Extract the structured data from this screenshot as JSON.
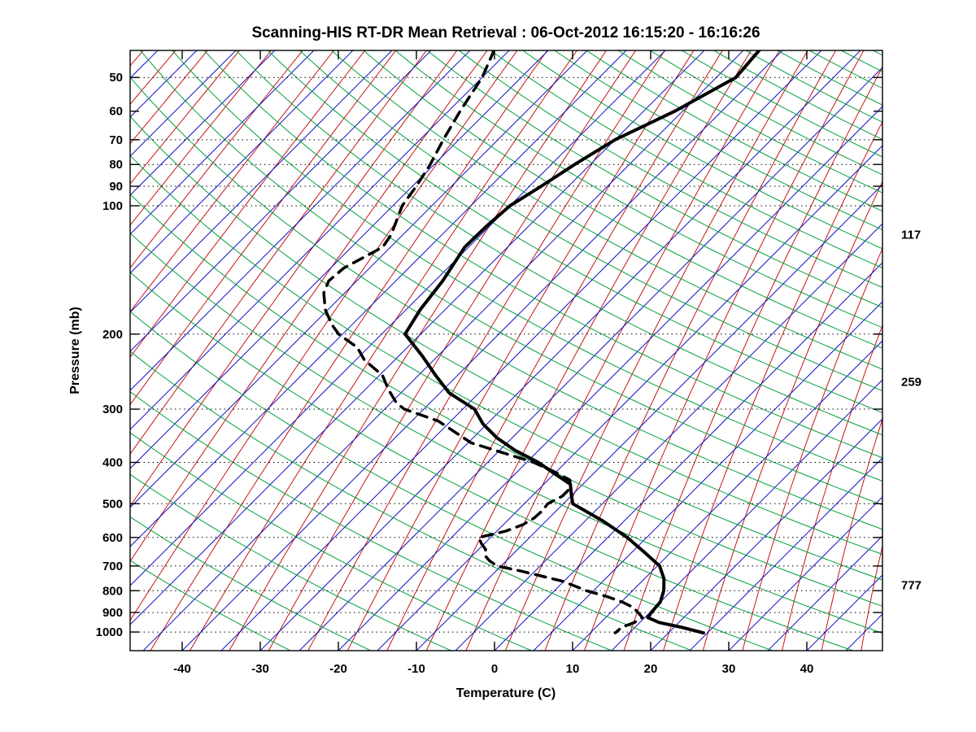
{
  "title": "Scanning-HIS RT-DR Mean Retrieval : 06-Oct-2012 16:15:20 - 16:16:26",
  "chart_data": {
    "type": "line",
    "subtype": "skew-t-log-p-sounding",
    "title": "Scanning-HIS RT-DR Mean Retrieval : 06-Oct-2012 16:15:20 - 16:16:26",
    "xlabel": "Temperature (C)",
    "ylabel": "Pressure (mb)",
    "x_axis": {
      "ticks": [
        -40,
        -30,
        -20,
        -10,
        0,
        10,
        20,
        30,
        40
      ],
      "min": -46,
      "max": 46,
      "skew_deg": 45
    },
    "y_axis": {
      "scale": "log",
      "ticks": [
        50,
        60,
        70,
        80,
        90,
        100,
        200,
        300,
        400,
        500,
        600,
        700,
        800,
        900,
        1000
      ],
      "top_mb": 43.2,
      "bottom_mb": 1105.7,
      "dotted_levels": [
        50,
        70,
        80,
        90,
        100,
        200,
        300,
        400,
        500,
        600,
        700,
        800,
        900,
        1000
      ]
    },
    "right_pressure_labels": [
      117,
      259,
      777
    ],
    "grid": "dotted-horizontal",
    "legend": "none",
    "series": [
      {
        "name": "temperature",
        "line": "solid",
        "color": "#000000",
        "points_p_mb_T_C": [
          [
            43,
            -43
          ],
          [
            50,
            -42.5
          ],
          [
            60,
            -46
          ],
          [
            70,
            -50
          ],
          [
            80,
            -52
          ],
          [
            90,
            -53.5
          ],
          [
            100,
            -55
          ],
          [
            112,
            -55.4
          ],
          [
            125,
            -55.5
          ],
          [
            150,
            -54
          ],
          [
            175,
            -53.2
          ],
          [
            200,
            -52
          ],
          [
            225,
            -47
          ],
          [
            250,
            -42.8
          ],
          [
            275,
            -38.8
          ],
          [
            300,
            -33.5
          ],
          [
            325,
            -30.5
          ],
          [
            350,
            -27
          ],
          [
            375,
            -23
          ],
          [
            400,
            -18.5
          ],
          [
            425,
            -15
          ],
          [
            450,
            -11.6
          ],
          [
            475,
            -10.2
          ],
          [
            500,
            -8.8
          ],
          [
            550,
            -2.6
          ],
          [
            600,
            2.5
          ],
          [
            650,
            6.6
          ],
          [
            700,
            10.3
          ],
          [
            750,
            12.5
          ],
          [
            800,
            14
          ],
          [
            850,
            15
          ],
          [
            900,
            15.2
          ],
          [
            925,
            15.4
          ],
          [
            950,
            17.5
          ],
          [
            975,
            21
          ],
          [
            1005,
            24.5
          ]
        ]
      },
      {
        "name": "dewpoint",
        "line": "dashed",
        "color": "#000000",
        "points_p_mb_T_C": [
          [
            43,
            -77
          ],
          [
            50,
            -75
          ],
          [
            60,
            -73.5
          ],
          [
            70,
            -72
          ],
          [
            80,
            -70.5
          ],
          [
            90,
            -69.5
          ],
          [
            100,
            -68.8
          ],
          [
            117,
            -66.5
          ],
          [
            125,
            -66
          ],
          [
            140,
            -68.3
          ],
          [
            150,
            -68.6
          ],
          [
            160,
            -67.7
          ],
          [
            175,
            -65.4
          ],
          [
            190,
            -62.6
          ],
          [
            200,
            -60.5
          ],
          [
            215,
            -56.4
          ],
          [
            230,
            -53.9
          ],
          [
            250,
            -49.6
          ],
          [
            270,
            -47
          ],
          [
            290,
            -44.3
          ],
          [
            300,
            -42.5
          ],
          [
            320,
            -36.6
          ],
          [
            340,
            -33
          ],
          [
            360,
            -29.6
          ],
          [
            380,
            -24.2
          ],
          [
            400,
            -19.1
          ],
          [
            420,
            -15.4
          ],
          [
            440,
            -12.2
          ],
          [
            460,
            -11.1
          ],
          [
            480,
            -11.1
          ],
          [
            500,
            -12
          ],
          [
            520,
            -11.8
          ],
          [
            540,
            -11.9
          ],
          [
            560,
            -12.5
          ],
          [
            580,
            -13.9
          ],
          [
            600,
            -16.5
          ],
          [
            620,
            -15.4
          ],
          [
            640,
            -14.1
          ],
          [
            660,
            -13.5
          ],
          [
            680,
            -12.2
          ],
          [
            700,
            -10.5
          ],
          [
            720,
            -6.7
          ],
          [
            740,
            -3.4
          ],
          [
            760,
            -0.2
          ],
          [
            780,
            2
          ],
          [
            800,
            4.1
          ],
          [
            825,
            7.4
          ],
          [
            850,
            10.1
          ],
          [
            875,
            12.2
          ],
          [
            900,
            13.5
          ],
          [
            925,
            14.7
          ],
          [
            950,
            14.3
          ],
          [
            975,
            13.3
          ],
          [
            1005,
            13.2
          ]
        ]
      }
    ],
    "background_lines": {
      "isotherms_C": {
        "from": -120,
        "to": 50,
        "step": 5,
        "color": "#1414c8"
      },
      "dry_adiabats_K": {
        "from": 240,
        "to": 610,
        "step": 10,
        "color": "#00a03c"
      },
      "mixing_lines_dewpoint_C_at_1000mb": {
        "from": -120,
        "to": 50,
        "step": 5,
        "color": "#c81414"
      }
    }
  }
}
